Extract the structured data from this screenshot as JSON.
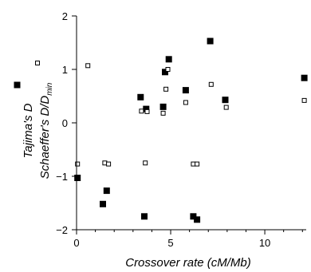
{
  "chart_data": {
    "type": "scatter",
    "xlabel": "Crossover rate (cM/Mb)",
    "ylabel_parts": {
      "tajima": "Tajima's D",
      "schaeffer_main": "Schaeffer's D/D",
      "schaeffer_sub": "min"
    },
    "xlim": [
      0,
      12.2
    ],
    "ylim": [
      -2,
      2
    ],
    "x_ticks": [
      0,
      5,
      10
    ],
    "y_ticks": [
      -2,
      -1,
      0,
      1,
      2
    ],
    "grid": false,
    "series": [
      {
        "marker": "filled-square",
        "color": "#000000",
        "x": [
          0.05,
          1.4,
          1.6,
          3.4,
          3.6,
          3.7,
          4.6,
          4.7,
          4.9,
          5.8,
          6.2,
          6.4,
          7.1,
          7.9,
          12.1
        ],
        "y": [
          -1.03,
          -1.52,
          -1.27,
          0.48,
          -1.75,
          0.26,
          0.3,
          0.95,
          1.19,
          0.61,
          -1.75,
          -1.81,
          1.53,
          0.43,
          0.84
        ]
      },
      {
        "marker": "open-square",
        "color": "#000000",
        "x": [
          0.05,
          0.6,
          1.5,
          1.7,
          3.45,
          3.65,
          3.75,
          4.6,
          4.75,
          4.85,
          5.8,
          6.2,
          6.4,
          7.15,
          7.95,
          12.1
        ],
        "y": [
          -0.77,
          1.07,
          -0.75,
          -0.77,
          0.22,
          -0.75,
          0.21,
          0.18,
          0.63,
          1.0,
          0.38,
          -0.77,
          -0.77,
          0.72,
          0.29,
          0.42
        ]
      }
    ]
  }
}
